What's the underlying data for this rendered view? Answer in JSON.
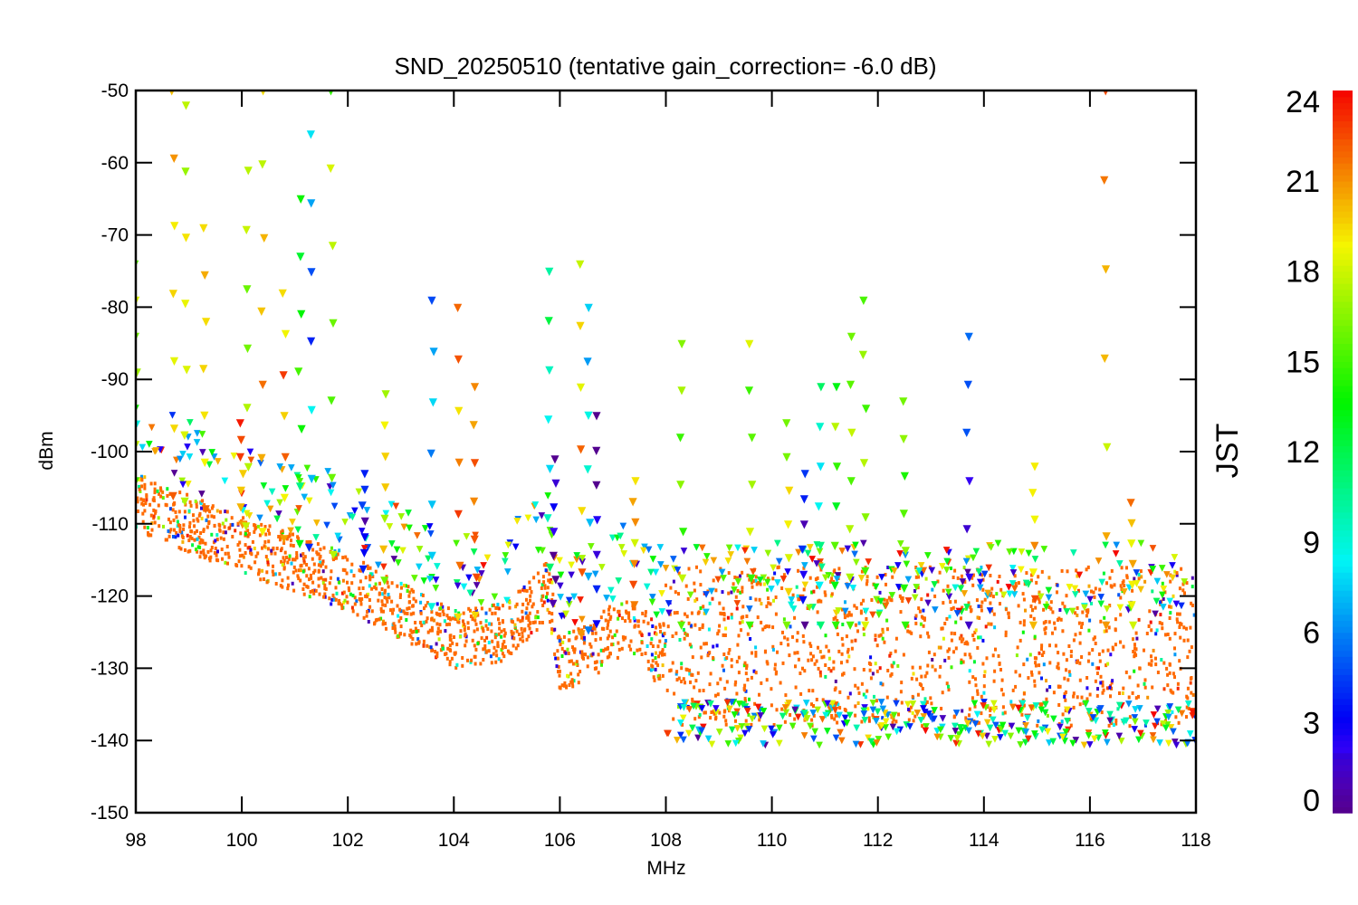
{
  "chart_data": {
    "type": "scatter",
    "title": "SND_20250510 (tentative gain_correction= -6.0 dB)",
    "xlabel": "MHz",
    "ylabel": "dBm",
    "xlim": [
      98,
      118
    ],
    "ylim": [
      -150,
      -50
    ],
    "x_ticks": [
      98,
      100,
      102,
      104,
      106,
      108,
      110,
      112,
      114,
      116,
      118
    ],
    "y_ticks": [
      -150,
      -140,
      -130,
      -120,
      -110,
      -100,
      -90,
      -80,
      -70,
      -60,
      -50
    ],
    "x_tick_labels": [
      "98",
      "100",
      "102",
      "104",
      "106",
      "108",
      "110",
      "112",
      "114",
      "116",
      "118"
    ],
    "y_tick_labels": [
      "-150",
      "-140",
      "-130",
      "-120",
      "-110",
      "-100",
      "-90",
      "-80",
      "-70",
      "-60",
      "-50"
    ],
    "colorbar": {
      "label": "JST",
      "range": [
        0,
        24
      ],
      "ticks": [
        0,
        3,
        6,
        9,
        12,
        15,
        18,
        21,
        24
      ],
      "tick_labels": [
        "0",
        "3",
        "6",
        "9",
        "12",
        "15",
        "18",
        "21",
        "24"
      ],
      "colormap": "rainbow (purple → blue → cyan → green → yellow → orange → red)"
    },
    "noise_floor": [
      {
        "x": 98.0,
        "y": -107
      },
      {
        "x": 100.0,
        "y": -113
      },
      {
        "x": 102.0,
        "y": -118
      },
      {
        "x": 103.5,
        "y": -124
      },
      {
        "x": 104.0,
        "y": -126
      },
      {
        "x": 105.0,
        "y": -125
      },
      {
        "x": 105.8,
        "y": -119
      },
      {
        "x": 106.0,
        "y": -129
      },
      {
        "x": 106.5,
        "y": -128
      },
      {
        "x": 107.0,
        "y": -125
      },
      {
        "x": 107.5,
        "y": -124
      },
      {
        "x": 107.8,
        "y": -128
      },
      {
        "x": 108.0,
        "y": -127
      },
      {
        "x": 118.0,
        "y": -127
      }
    ],
    "peaks": [
      {
        "x": 98.0,
        "top": -74,
        "jst": 16
      },
      {
        "x": 98.7,
        "top": -50,
        "jst": 20
      },
      {
        "x": 98.95,
        "top": -52,
        "jst": 17
      },
      {
        "x": 99.3,
        "top": -69,
        "jst": 20
      },
      {
        "x": 100.0,
        "top": -96,
        "jst": 21
      },
      {
        "x": 100.1,
        "top": -61,
        "jst": 17
      },
      {
        "x": 100.4,
        "top": -50,
        "jst": 20
      },
      {
        "x": 100.8,
        "top": -78,
        "jst": 21
      },
      {
        "x": 101.1,
        "top": -65,
        "jst": 13
      },
      {
        "x": 101.3,
        "top": -56,
        "jst": 6
      },
      {
        "x": 101.7,
        "top": -50,
        "jst": 17
      },
      {
        "x": 102.3,
        "top": -103,
        "jst": 2
      },
      {
        "x": 102.7,
        "top": -92,
        "jst": 18
      },
      {
        "x": 103.6,
        "top": -79,
        "jst": 7
      },
      {
        "x": 104.1,
        "top": -80,
        "jst": 21
      },
      {
        "x": 104.4,
        "top": -91,
        "jst": 20
      },
      {
        "x": 105.8,
        "top": -75,
        "jst": 10
      },
      {
        "x": 105.9,
        "top": -101,
        "jst": 2
      },
      {
        "x": 106.4,
        "top": -74,
        "jst": 20
      },
      {
        "x": 106.55,
        "top": -80,
        "jst": 7
      },
      {
        "x": 106.7,
        "top": -95,
        "jst": 2
      },
      {
        "x": 107.4,
        "top": -104,
        "jst": 20
      },
      {
        "x": 108.3,
        "top": -85,
        "jst": 16
      },
      {
        "x": 109.6,
        "top": -85,
        "jst": 17
      },
      {
        "x": 110.3,
        "top": -96,
        "jst": 17
      },
      {
        "x": 110.6,
        "top": -103,
        "jst": 2
      },
      {
        "x": 110.9,
        "top": -91,
        "jst": 9
      },
      {
        "x": 111.2,
        "top": -91,
        "jst": 15
      },
      {
        "x": 111.5,
        "top": -84,
        "jst": 17
      },
      {
        "x": 111.75,
        "top": -79,
        "jst": 17
      },
      {
        "x": 112.5,
        "top": -93,
        "jst": 16
      },
      {
        "x": 113.7,
        "top": -84,
        "jst": 3
      },
      {
        "x": 114.95,
        "top": -102,
        "jst": 21
      },
      {
        "x": 116.3,
        "top": -50,
        "jst": 20
      },
      {
        "x": 116.8,
        "top": -107,
        "jst": 20
      }
    ]
  }
}
